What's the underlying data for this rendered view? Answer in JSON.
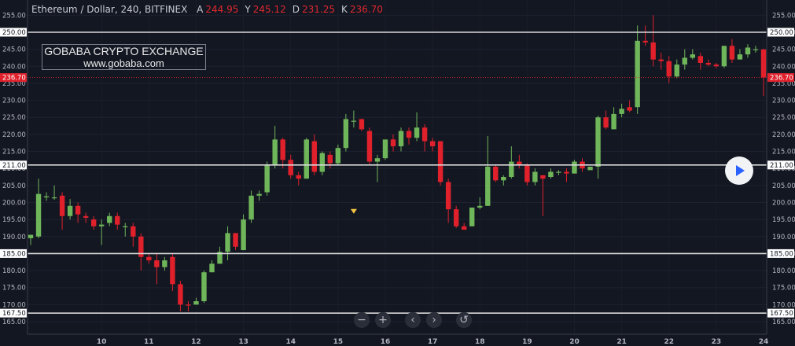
{
  "header": {
    "symbol": "Ethereum / Dollar, 240, BITFINEX",
    "ohlc": [
      {
        "label": "A",
        "value": "244.95"
      },
      {
        "label": "Y",
        "value": "245.12"
      },
      {
        "label": "D",
        "value": "231.25"
      },
      {
        "label": "K",
        "value": "236.70"
      }
    ]
  },
  "watermark": {
    "line1": "GOBABA CRYPTO EXCHANGE",
    "line2": "www.gobaba.com"
  },
  "controls": {
    "zoom_out": "−",
    "zoom_in": "+",
    "scroll_left": "‹",
    "scroll_right": "›",
    "reset": "↺"
  },
  "icons": {
    "play": "play-icon"
  },
  "colors": {
    "up": "#6fb55a",
    "down": "#e0212c",
    "background": "#131722",
    "level_line": "#d9d9d9",
    "last_price": "#e0212c",
    "marker": "#f5c542"
  },
  "chart_data": {
    "type": "candlestick",
    "title": "",
    "ylim": [
      162.5,
      257
    ],
    "ytick_labels": [
      "165.00",
      "170.00",
      "175.00",
      "180.00",
      "185.00",
      "190.00",
      "195.00",
      "200.00",
      "205.00",
      "210.00",
      "215.00",
      "220.00",
      "225.00",
      "230.00",
      "235.00",
      "240.00",
      "245.00",
      "250.00",
      "255.00"
    ],
    "xtick_labels": [
      "10",
      "11",
      "12",
      "13",
      "14",
      "15",
      "16",
      "17",
      "18",
      "19",
      "20",
      "21",
      "22",
      "23",
      "24"
    ],
    "horizontal_levels": [
      {
        "value": 250.0,
        "label": "250.00"
      },
      {
        "value": 211.0,
        "label": "211.00"
      },
      {
        "value": 185.0,
        "label": "185.00"
      },
      {
        "value": 167.5,
        "label": "167.50"
      }
    ],
    "last_price": {
      "value": 236.7,
      "label": "236.70"
    },
    "marker": {
      "candle_index": 41,
      "value": 196.0
    },
    "candles": [
      [
        189.5,
        190.5,
        187.5,
        190.5
      ],
      [
        190.0,
        202.5,
        189.5,
        207.0
      ],
      [
        201.5,
        201.8,
        200.5,
        203.0
      ],
      [
        201.5,
        201.5,
        200.8,
        205.0
      ],
      [
        202.0,
        196.0,
        192.0,
        203.0
      ],
      [
        196.0,
        199.0,
        195.0,
        201.0
      ],
      [
        199.0,
        196.5,
        194.0,
        200.0
      ],
      [
        196.0,
        195.5,
        194.0,
        197.0
      ],
      [
        195.0,
        193.0,
        192.0,
        196.0
      ],
      [
        193.0,
        193.5,
        187.5,
        195.0
      ],
      [
        194.0,
        196.0,
        193.0,
        197.0
      ],
      [
        196.0,
        193.5,
        192.0,
        197.0
      ],
      [
        193.0,
        193.0,
        190.0,
        194.0
      ],
      [
        193.0,
        190.0,
        187.0,
        194.0
      ],
      [
        190.0,
        184.0,
        180.0,
        191.0
      ],
      [
        184.0,
        183.0,
        182.0,
        185.0
      ],
      [
        183.0,
        181.0,
        176.0,
        185.0
      ],
      [
        181.0,
        183.0,
        180.0,
        184.0
      ],
      [
        184.0,
        176.0,
        174.0,
        185.0
      ],
      [
        176.0,
        170.0,
        168.0,
        177.0
      ],
      [
        170.0,
        169.8,
        168.0,
        171.0
      ],
      [
        170.0,
        171.0,
        170.0,
        172.0
      ],
      [
        171.0,
        179.5,
        170.5,
        180.0
      ],
      [
        179.5,
        182.0,
        180.0,
        183.0
      ],
      [
        182.0,
        185.5,
        182.0,
        187.0
      ],
      [
        185.5,
        191.0,
        183.0,
        193.0
      ],
      [
        191.0,
        187.0,
        186.0,
        191.0
      ],
      [
        186.0,
        195.0,
        186.0,
        196.5
      ],
      [
        195.0,
        202.0,
        194.0,
        203.5
      ],
      [
        202.0,
        202.5,
        200.5,
        203.5
      ],
      [
        203.0,
        211.0,
        202.0,
        212.0
      ],
      [
        211.0,
        218.5,
        210.0,
        222.5
      ],
      [
        218.5,
        212.5,
        210.0,
        219.0
      ],
      [
        212.5,
        208.0,
        207.0,
        214.0
      ],
      [
        208.0,
        207.0,
        205.0,
        209.0
      ],
      [
        207.0,
        218.5,
        207.0,
        219.0
      ],
      [
        218.0,
        209.0,
        208.0,
        220.0
      ],
      [
        209.0,
        214.5,
        208.0,
        215.0
      ],
      [
        214.0,
        211.5,
        210.0,
        215.0
      ],
      [
        211.5,
        216.0,
        211.0,
        217.0
      ],
      [
        216.0,
        224.5,
        215.0,
        226.0
      ],
      [
        224.0,
        224.0,
        222.0,
        227.0
      ],
      [
        224.5,
        221.5,
        221.0,
        224.5
      ],
      [
        221.0,
        212.0,
        211.0,
        222.0
      ],
      [
        212.0,
        213.0,
        206.0,
        214.0
      ],
      [
        213.0,
        218.5,
        212.5,
        218.5
      ],
      [
        218.5,
        216.5,
        215.0,
        220.0
      ],
      [
        216.5,
        221.0,
        215.0,
        222.0
      ],
      [
        221.0,
        219.0,
        217.0,
        222.0
      ],
      [
        219.0,
        222.0,
        218.0,
        226.5
      ],
      [
        222.0,
        218.0,
        215.0,
        223.0
      ],
      [
        218.0,
        216.5,
        215.0,
        219.0
      ],
      [
        218.0,
        206.0,
        205.0,
        218.0
      ],
      [
        206.0,
        198.0,
        194.0,
        207.0
      ],
      [
        198.0,
        193.0,
        192.5,
        199.0
      ],
      [
        193.0,
        192.0,
        192.0,
        194.0
      ],
      [
        193.0,
        198.5,
        193.0,
        198.5
      ],
      [
        198.5,
        199.0,
        198.0,
        201.5
      ],
      [
        199.0,
        210.5,
        199.0,
        219.5
      ],
      [
        210.5,
        206.5,
        206.0,
        211.0
      ],
      [
        206.5,
        207.5,
        205.0,
        208.0
      ],
      [
        207.5,
        212.0,
        207.0,
        216.5
      ],
      [
        212.0,
        211.0,
        210.0,
        214.0
      ],
      [
        211.0,
        206.0,
        205.0,
        211.5
      ],
      [
        206.0,
        209.0,
        205.0,
        210.0
      ],
      [
        208.0,
        207.0,
        196.0,
        208.0
      ],
      [
        207.5,
        209.0,
        207.0,
        210.0
      ],
      [
        209.0,
        209.0,
        208.0,
        209.5
      ],
      [
        209.0,
        208.5,
        206.0,
        210.0
      ],
      [
        208.5,
        212.0,
        208.5,
        212.5
      ],
      [
        212.0,
        210.0,
        209.0,
        213.0
      ],
      [
        209.5,
        210.5,
        209.5,
        210.5
      ],
      [
        210.5,
        225.0,
        207.0,
        225.5
      ],
      [
        225.0,
        222.0,
        221.5,
        227.0
      ],
      [
        221.5,
        226.0,
        221.5,
        228.0
      ],
      [
        226.0,
        227.5,
        225.0,
        229.0
      ],
      [
        228.0,
        227.0,
        226.5,
        230.0
      ],
      [
        228.0,
        247.5,
        226.0,
        252.0
      ],
      [
        247.5,
        247.0,
        246.0,
        252.0
      ],
      [
        247.0,
        242.0,
        240.0,
        255.0
      ],
      [
        242.0,
        241.5,
        239.0,
        244.0
      ],
      [
        241.5,
        237.0,
        235.0,
        243.0
      ],
      [
        237.0,
        240.5,
        236.5,
        242.0
      ],
      [
        240.5,
        242.5,
        239.0,
        245.0
      ],
      [
        242.5,
        243.5,
        242.0,
        245.0
      ],
      [
        243.0,
        241.0,
        239.0,
        244.0
      ],
      [
        241.0,
        240.5,
        240.0,
        242.0
      ],
      [
        240.5,
        240.0,
        239.5,
        241.0
      ],
      [
        240.0,
        246.0,
        239.5,
        246.0
      ],
      [
        246.0,
        242.0,
        241.0,
        248.0
      ],
      [
        242.0,
        243.5,
        242.0,
        245.0
      ],
      [
        243.5,
        245.5,
        242.5,
        246.5
      ],
      [
        245.0,
        245.0,
        244.0,
        246.0
      ],
      [
        244.95,
        236.7,
        231.25,
        245.12
      ]
    ]
  }
}
